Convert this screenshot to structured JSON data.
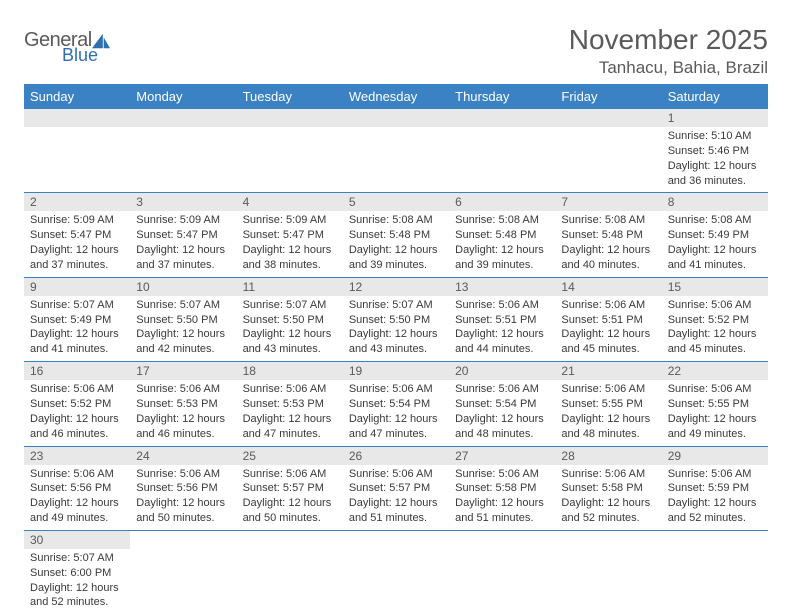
{
  "logo": {
    "general": "General",
    "blue": "Blue"
  },
  "title": "November 2025",
  "location": "Tanhacu, Bahia, Brazil",
  "header_bg": "#3b82c4",
  "header_text": "#ffffff",
  "daynum_bg": "#e8e8e8",
  "border_color": "#3b82c4",
  "days": [
    "Sunday",
    "Monday",
    "Tuesday",
    "Wednesday",
    "Thursday",
    "Friday",
    "Saturday"
  ],
  "weeks": [
    [
      null,
      null,
      null,
      null,
      null,
      null,
      {
        "n": "1",
        "sr": "Sunrise: 5:10 AM",
        "ss": "Sunset: 5:46 PM",
        "d1": "Daylight: 12 hours",
        "d2": "and 36 minutes."
      }
    ],
    [
      {
        "n": "2",
        "sr": "Sunrise: 5:09 AM",
        "ss": "Sunset: 5:47 PM",
        "d1": "Daylight: 12 hours",
        "d2": "and 37 minutes."
      },
      {
        "n": "3",
        "sr": "Sunrise: 5:09 AM",
        "ss": "Sunset: 5:47 PM",
        "d1": "Daylight: 12 hours",
        "d2": "and 37 minutes."
      },
      {
        "n": "4",
        "sr": "Sunrise: 5:09 AM",
        "ss": "Sunset: 5:47 PM",
        "d1": "Daylight: 12 hours",
        "d2": "and 38 minutes."
      },
      {
        "n": "5",
        "sr": "Sunrise: 5:08 AM",
        "ss": "Sunset: 5:48 PM",
        "d1": "Daylight: 12 hours",
        "d2": "and 39 minutes."
      },
      {
        "n": "6",
        "sr": "Sunrise: 5:08 AM",
        "ss": "Sunset: 5:48 PM",
        "d1": "Daylight: 12 hours",
        "d2": "and 39 minutes."
      },
      {
        "n": "7",
        "sr": "Sunrise: 5:08 AM",
        "ss": "Sunset: 5:48 PM",
        "d1": "Daylight: 12 hours",
        "d2": "and 40 minutes."
      },
      {
        "n": "8",
        "sr": "Sunrise: 5:08 AM",
        "ss": "Sunset: 5:49 PM",
        "d1": "Daylight: 12 hours",
        "d2": "and 41 minutes."
      }
    ],
    [
      {
        "n": "9",
        "sr": "Sunrise: 5:07 AM",
        "ss": "Sunset: 5:49 PM",
        "d1": "Daylight: 12 hours",
        "d2": "and 41 minutes."
      },
      {
        "n": "10",
        "sr": "Sunrise: 5:07 AM",
        "ss": "Sunset: 5:50 PM",
        "d1": "Daylight: 12 hours",
        "d2": "and 42 minutes."
      },
      {
        "n": "11",
        "sr": "Sunrise: 5:07 AM",
        "ss": "Sunset: 5:50 PM",
        "d1": "Daylight: 12 hours",
        "d2": "and 43 minutes."
      },
      {
        "n": "12",
        "sr": "Sunrise: 5:07 AM",
        "ss": "Sunset: 5:50 PM",
        "d1": "Daylight: 12 hours",
        "d2": "and 43 minutes."
      },
      {
        "n": "13",
        "sr": "Sunrise: 5:06 AM",
        "ss": "Sunset: 5:51 PM",
        "d1": "Daylight: 12 hours",
        "d2": "and 44 minutes."
      },
      {
        "n": "14",
        "sr": "Sunrise: 5:06 AM",
        "ss": "Sunset: 5:51 PM",
        "d1": "Daylight: 12 hours",
        "d2": "and 45 minutes."
      },
      {
        "n": "15",
        "sr": "Sunrise: 5:06 AM",
        "ss": "Sunset: 5:52 PM",
        "d1": "Daylight: 12 hours",
        "d2": "and 45 minutes."
      }
    ],
    [
      {
        "n": "16",
        "sr": "Sunrise: 5:06 AM",
        "ss": "Sunset: 5:52 PM",
        "d1": "Daylight: 12 hours",
        "d2": "and 46 minutes."
      },
      {
        "n": "17",
        "sr": "Sunrise: 5:06 AM",
        "ss": "Sunset: 5:53 PM",
        "d1": "Daylight: 12 hours",
        "d2": "and 46 minutes."
      },
      {
        "n": "18",
        "sr": "Sunrise: 5:06 AM",
        "ss": "Sunset: 5:53 PM",
        "d1": "Daylight: 12 hours",
        "d2": "and 47 minutes."
      },
      {
        "n": "19",
        "sr": "Sunrise: 5:06 AM",
        "ss": "Sunset: 5:54 PM",
        "d1": "Daylight: 12 hours",
        "d2": "and 47 minutes."
      },
      {
        "n": "20",
        "sr": "Sunrise: 5:06 AM",
        "ss": "Sunset: 5:54 PM",
        "d1": "Daylight: 12 hours",
        "d2": "and 48 minutes."
      },
      {
        "n": "21",
        "sr": "Sunrise: 5:06 AM",
        "ss": "Sunset: 5:55 PM",
        "d1": "Daylight: 12 hours",
        "d2": "and 48 minutes."
      },
      {
        "n": "22",
        "sr": "Sunrise: 5:06 AM",
        "ss": "Sunset: 5:55 PM",
        "d1": "Daylight: 12 hours",
        "d2": "and 49 minutes."
      }
    ],
    [
      {
        "n": "23",
        "sr": "Sunrise: 5:06 AM",
        "ss": "Sunset: 5:56 PM",
        "d1": "Daylight: 12 hours",
        "d2": "and 49 minutes."
      },
      {
        "n": "24",
        "sr": "Sunrise: 5:06 AM",
        "ss": "Sunset: 5:56 PM",
        "d1": "Daylight: 12 hours",
        "d2": "and 50 minutes."
      },
      {
        "n": "25",
        "sr": "Sunrise: 5:06 AM",
        "ss": "Sunset: 5:57 PM",
        "d1": "Daylight: 12 hours",
        "d2": "and 50 minutes."
      },
      {
        "n": "26",
        "sr": "Sunrise: 5:06 AM",
        "ss": "Sunset: 5:57 PM",
        "d1": "Daylight: 12 hours",
        "d2": "and 51 minutes."
      },
      {
        "n": "27",
        "sr": "Sunrise: 5:06 AM",
        "ss": "Sunset: 5:58 PM",
        "d1": "Daylight: 12 hours",
        "d2": "and 51 minutes."
      },
      {
        "n": "28",
        "sr": "Sunrise: 5:06 AM",
        "ss": "Sunset: 5:58 PM",
        "d1": "Daylight: 12 hours",
        "d2": "and 52 minutes."
      },
      {
        "n": "29",
        "sr": "Sunrise: 5:06 AM",
        "ss": "Sunset: 5:59 PM",
        "d1": "Daylight: 12 hours",
        "d2": "and 52 minutes."
      }
    ],
    [
      {
        "n": "30",
        "sr": "Sunrise: 5:07 AM",
        "ss": "Sunset: 6:00 PM",
        "d1": "Daylight: 12 hours",
        "d2": "and 52 minutes."
      },
      null,
      null,
      null,
      null,
      null,
      null
    ]
  ]
}
